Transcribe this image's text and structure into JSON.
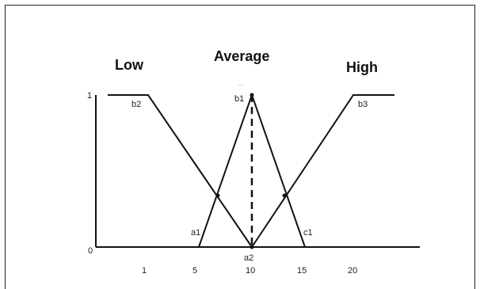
{
  "sets": [
    {
      "name": "low-label",
      "label": "Low"
    },
    {
      "name": "average-label",
      "label": "Average"
    },
    {
      "name": "high-label",
      "label": "High"
    }
  ],
  "y_axis": {
    "top_label": "1",
    "origin_label": "0"
  },
  "x_ticks": [
    "1",
    "5",
    "10",
    "15",
    "20"
  ],
  "points": {
    "b2": "b2",
    "b1": "b1",
    "b3": "b3",
    "a1": "a1",
    "a2": "a2",
    "c1": "c1"
  },
  "colors": {
    "line": "#111111",
    "background": "#ffffff"
  }
}
